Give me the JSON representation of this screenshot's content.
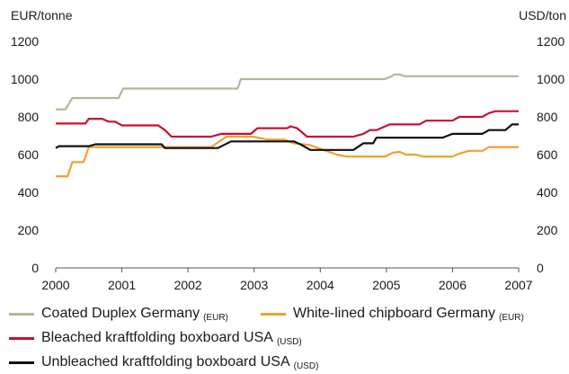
{
  "chart_data": {
    "type": "line",
    "left_axis_unit": "EUR/tonne",
    "right_axis_unit": "USD/ton",
    "ylim": [
      0,
      1200
    ],
    "xlim": [
      2000,
      2007
    ],
    "y_ticks": [
      "0",
      "200",
      "400",
      "600",
      "800",
      "1000",
      "1200"
    ],
    "x_ticks": [
      "2000",
      "2001",
      "2002",
      "2003",
      "2004",
      "2005",
      "2006",
      "2007"
    ],
    "grid": false,
    "legend_position": "bottom",
    "series": [
      {
        "name": "Coated Duplex Germany",
        "unit": "(EUR)",
        "color": "#b5b59a",
        "points": [
          [
            2000.0,
            840
          ],
          [
            2000.15,
            840
          ],
          [
            2000.25,
            900
          ],
          [
            2000.95,
            900
          ],
          [
            2001.02,
            950
          ],
          [
            2002.75,
            950
          ],
          [
            2002.8,
            1000
          ],
          [
            2004.97,
            1000
          ],
          [
            2005.05,
            1010
          ],
          [
            2005.12,
            1025
          ],
          [
            2005.2,
            1025
          ],
          [
            2005.28,
            1015
          ],
          [
            2007.0,
            1015
          ]
        ]
      },
      {
        "name": "White-lined chipboard Germany",
        "unit": "(EUR)",
        "color": "#f0a030",
        "points": [
          [
            2000.0,
            485
          ],
          [
            2000.18,
            485
          ],
          [
            2000.25,
            560
          ],
          [
            2000.42,
            560
          ],
          [
            2000.5,
            640
          ],
          [
            2002.35,
            640
          ],
          [
            2002.58,
            695
          ],
          [
            2002.98,
            695
          ],
          [
            2003.2,
            680
          ],
          [
            2003.45,
            680
          ],
          [
            2003.6,
            660
          ],
          [
            2003.85,
            650
          ],
          [
            2004.05,
            625
          ],
          [
            2004.25,
            600
          ],
          [
            2004.4,
            590
          ],
          [
            2004.98,
            590
          ],
          [
            2005.1,
            610
          ],
          [
            2005.2,
            615
          ],
          [
            2005.3,
            600
          ],
          [
            2005.45,
            600
          ],
          [
            2005.55,
            590
          ],
          [
            2006.0,
            590
          ],
          [
            2006.1,
            605
          ],
          [
            2006.25,
            620
          ],
          [
            2006.45,
            620
          ],
          [
            2006.55,
            640
          ],
          [
            2007.0,
            640
          ]
        ]
      },
      {
        "name": "Bleached kraftfolding boxboard USA",
        "unit": "(USD)",
        "color": "#c8102e",
        "points": [
          [
            2000.0,
            765
          ],
          [
            2000.45,
            765
          ],
          [
            2000.5,
            790
          ],
          [
            2000.7,
            790
          ],
          [
            2000.8,
            775
          ],
          [
            2000.9,
            775
          ],
          [
            2001.0,
            755
          ],
          [
            2001.55,
            755
          ],
          [
            2001.65,
            730
          ],
          [
            2001.75,
            695
          ],
          [
            2002.35,
            695
          ],
          [
            2002.5,
            710
          ],
          [
            2002.95,
            710
          ],
          [
            2003.05,
            740
          ],
          [
            2003.5,
            740
          ],
          [
            2003.55,
            750
          ],
          [
            2003.65,
            740
          ],
          [
            2003.8,
            695
          ],
          [
            2004.5,
            695
          ],
          [
            2004.65,
            710
          ],
          [
            2004.75,
            730
          ],
          [
            2004.85,
            730
          ],
          [
            2005.05,
            760
          ],
          [
            2005.5,
            760
          ],
          [
            2005.6,
            780
          ],
          [
            2006.0,
            780
          ],
          [
            2006.1,
            800
          ],
          [
            2006.45,
            800
          ],
          [
            2006.55,
            820
          ],
          [
            2006.65,
            830
          ],
          [
            2007.0,
            830
          ]
        ]
      },
      {
        "name": "Unbleached kraftfolding boxboard USA",
        "unit": "(USD)",
        "color": "#111111",
        "points": [
          [
            2000.0,
            635
          ],
          [
            2000.05,
            645
          ],
          [
            2000.5,
            645
          ],
          [
            2000.6,
            655
          ],
          [
            2001.6,
            655
          ],
          [
            2001.65,
            635
          ],
          [
            2002.45,
            635
          ],
          [
            2002.65,
            670
          ],
          [
            2003.6,
            670
          ],
          [
            2003.7,
            655
          ],
          [
            2003.85,
            625
          ],
          [
            2004.5,
            625
          ],
          [
            2004.65,
            660
          ],
          [
            2004.8,
            660
          ],
          [
            2004.85,
            690
          ],
          [
            2005.85,
            690
          ],
          [
            2006.0,
            710
          ],
          [
            2006.45,
            710
          ],
          [
            2006.55,
            730
          ],
          [
            2006.8,
            730
          ],
          [
            2006.9,
            760
          ],
          [
            2007.0,
            760
          ]
        ]
      }
    ]
  }
}
